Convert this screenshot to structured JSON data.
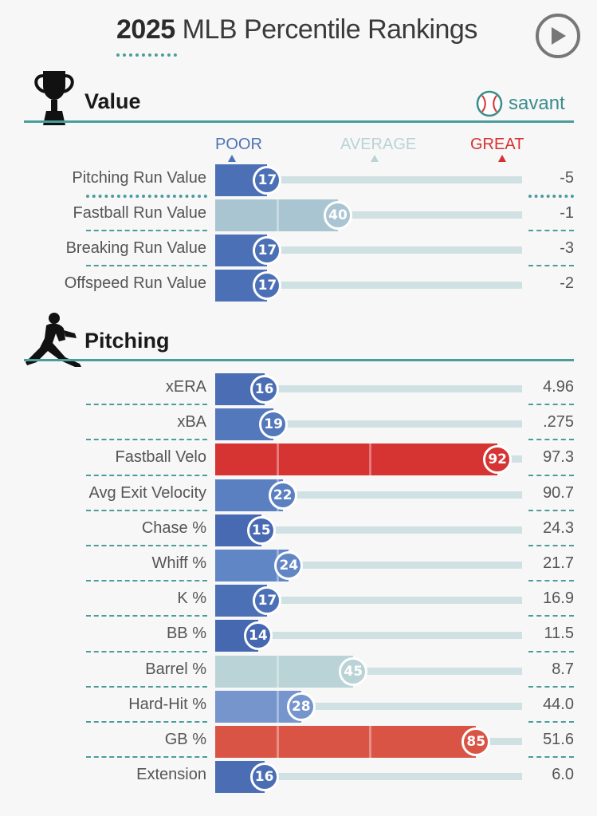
{
  "header": {
    "year": "2025",
    "title": "MLB Percentile Rankings",
    "play_icon": "play-icon"
  },
  "value_section": {
    "title": "Value",
    "icon": "trophy-icon",
    "brand": "savant",
    "brand_icon": "baseball-icon"
  },
  "legend": {
    "poor": "POOR",
    "average": "AVERAGE",
    "great": "GREAT"
  },
  "colors": {
    "accent": "#4a9d9c",
    "poor": "#4f72b8",
    "great": "#d63131",
    "average": "#b9d3d6"
  },
  "value_metrics": [
    {
      "label": "Pitching Run Value",
      "percentile": 17,
      "value": "-5",
      "color": "#4c70b6"
    },
    {
      "label": "Fastball Run Value",
      "percentile": 40,
      "value": "-1",
      "color": "#a9c5d2"
    },
    {
      "label": "Breaking Run Value",
      "percentile": 17,
      "value": "-3",
      "color": "#4c70b6"
    },
    {
      "label": "Offspeed Run Value",
      "percentile": 17,
      "value": "-2",
      "color": "#4c70b6"
    }
  ],
  "pitching_section": {
    "title": "Pitching",
    "icon": "pitcher-icon"
  },
  "pitching_metrics": [
    {
      "label": "xERA",
      "percentile": 16,
      "value": "4.96",
      "color": "#4a6db4"
    },
    {
      "label": "xBA",
      "percentile": 19,
      "value": ".275",
      "color": "#5478bc"
    },
    {
      "label": "Fastball Velo",
      "percentile": 92,
      "value": "97.3",
      "color": "#d63333"
    },
    {
      "label": "Avg Exit Velocity",
      "percentile": 22,
      "value": "90.7",
      "color": "#5b80c2"
    },
    {
      "label": "Chase %",
      "percentile": 15,
      "value": "24.3",
      "color": "#486ab3"
    },
    {
      "label": "Whiff %",
      "percentile": 24,
      "value": "21.7",
      "color": "#6186c6"
    },
    {
      "label": "K %",
      "percentile": 17,
      "value": "16.9",
      "color": "#4c70b6"
    },
    {
      "label": "BB %",
      "percentile": 14,
      "value": "11.5",
      "color": "#4668b1"
    },
    {
      "label": "Barrel %",
      "percentile": 45,
      "value": "8.7",
      "color": "#b9d3d6"
    },
    {
      "label": "Hard-Hit %",
      "percentile": 28,
      "value": "44.0",
      "color": "#7595cc"
    },
    {
      "label": "GB %",
      "percentile": 85,
      "value": "51.6",
      "color": "#da5446"
    },
    {
      "label": "Extension",
      "percentile": 16,
      "value": "6.0",
      "color": "#4a6db4"
    }
  ]
}
